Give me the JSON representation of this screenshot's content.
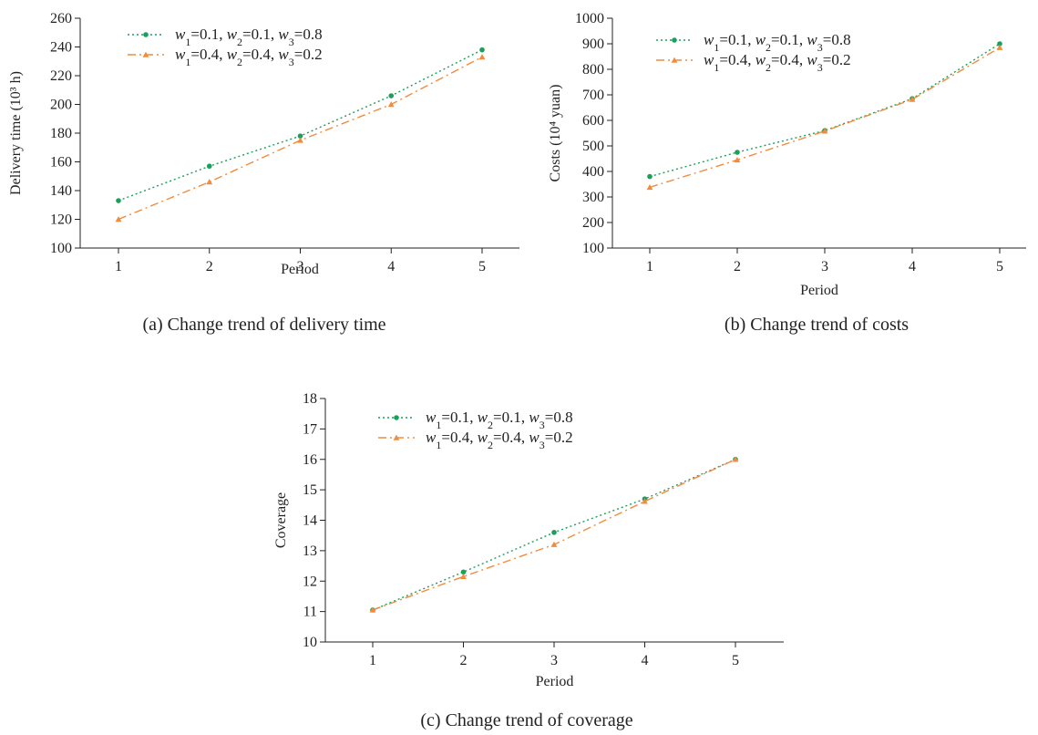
{
  "colors": {
    "series1": "#1aa05a",
    "series2": "#f08c3c",
    "axis": "#222222"
  },
  "legend_entries": [
    {
      "w1": "0.1",
      "w2": "0.1",
      "w3": "0.8"
    },
    {
      "w1": "0.4",
      "w2": "0.4",
      "w3": "0.2"
    }
  ],
  "chart_data": [
    {
      "type": "line",
      "caption": "(a) Change trend of delivery time",
      "xlabel": "Period",
      "ylabel": "Delivery time (10³ h)",
      "x": [
        1,
        2,
        3,
        4,
        5
      ],
      "xticks": [
        "1",
        "2",
        "3",
        "4",
        "5"
      ],
      "ylim": [
        100,
        260
      ],
      "yticks": [
        100,
        120,
        140,
        160,
        180,
        200,
        220,
        240,
        260
      ],
      "legend_position": "top-left",
      "grid": false,
      "series": [
        {
          "name": "w1=0.1, w2=0.1, w3=0.8",
          "values": [
            133,
            157,
            178,
            206,
            238
          ]
        },
        {
          "name": "w1=0.4, w2=0.4, w3=0.2",
          "values": [
            120,
            146,
            175,
            200,
            233
          ]
        }
      ]
    },
    {
      "type": "line",
      "caption": "(b) Change trend of costs",
      "xlabel": "Period",
      "ylabel": "Costs (10⁴ yuan)",
      "x": [
        1,
        2,
        3,
        4,
        5
      ],
      "xticks": [
        "1",
        "2",
        "3",
        "4",
        "5"
      ],
      "ylim": [
        100,
        1000
      ],
      "yticks": [
        100,
        200,
        300,
        400,
        500,
        600,
        700,
        800,
        900,
        1000
      ],
      "legend_position": "top-left",
      "grid": false,
      "series": [
        {
          "name": "w1=0.1, w2=0.1, w3=0.8",
          "values": [
            380,
            475,
            560,
            685,
            900
          ]
        },
        {
          "name": "w1=0.4, w2=0.4, w3=0.2",
          "values": [
            338,
            445,
            558,
            682,
            885
          ]
        }
      ]
    },
    {
      "type": "line",
      "caption": "(c) Change trend of coverage",
      "xlabel": "Period",
      "ylabel": "Coverage",
      "x": [
        1,
        2,
        3,
        4,
        5
      ],
      "xticks": [
        "1",
        "2",
        "3",
        "4",
        "5"
      ],
      "ylim": [
        10,
        18
      ],
      "yticks": [
        10,
        11,
        12,
        13,
        14,
        15,
        16,
        17,
        18
      ],
      "legend_position": "top-left",
      "grid": false,
      "series": [
        {
          "name": "w1=0.1, w2=0.1, w3=0.8",
          "values": [
            11.05,
            12.3,
            13.6,
            14.7,
            16.0
          ]
        },
        {
          "name": "w1=0.4, w2=0.4, w3=0.2",
          "values": [
            11.05,
            12.15,
            13.2,
            14.62,
            16.0
          ]
        }
      ]
    }
  ]
}
